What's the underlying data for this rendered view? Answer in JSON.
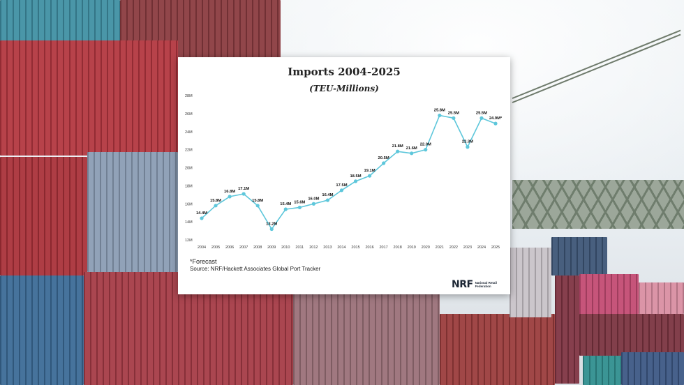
{
  "chart_data": {
    "type": "line",
    "title": "Imports 2004-2025",
    "subtitle": "(TEU-Millions)",
    "x": [
      "2004",
      "2005",
      "2006",
      "2007",
      "2008",
      "2009",
      "2010",
      "2011",
      "2012",
      "2013",
      "2014",
      "2015",
      "2016",
      "2017",
      "2018",
      "2019",
      "2020",
      "2021",
      "2022",
      "2023",
      "2024",
      "2025"
    ],
    "values": [
      14.4,
      15.8,
      16.8,
      17.1,
      15.8,
      13.2,
      15.4,
      15.6,
      16.0,
      16.4,
      17.5,
      18.5,
      19.1,
      20.5,
      21.8,
      21.6,
      22.0,
      25.8,
      25.5,
      22.3,
      25.5,
      24.9
    ],
    "data_labels": [
      "14.4M",
      "15.8M",
      "16.8M",
      "17.1M",
      "15.8M",
      "13.2M",
      "15.4M",
      "15.6M",
      "16.0M",
      "16.4M",
      "17.5M",
      "18.5M",
      "19.1M",
      "20.5M",
      "21.8M",
      "21.6M",
      "22.0M",
      "25.8M",
      "25.5M",
      "22.3M",
      "25.5M",
      "24.9M*"
    ],
    "ylim": [
      12,
      28
    ],
    "yticks": [
      "12M",
      "14M",
      "16M",
      "18M",
      "20M",
      "22M",
      "24M",
      "26M",
      "28M"
    ],
    "ytick_values": [
      12,
      14,
      16,
      18,
      20,
      22,
      24,
      26,
      28
    ],
    "grid": false,
    "line_color": "#5ec7db",
    "xlabel": "",
    "ylabel": ""
  },
  "footnote": "*Forecast",
  "source": "Source: NRF/Hackett Associates Global Port Tracker",
  "logo": {
    "mark": "NRF",
    "text": "National Retail Federation"
  }
}
